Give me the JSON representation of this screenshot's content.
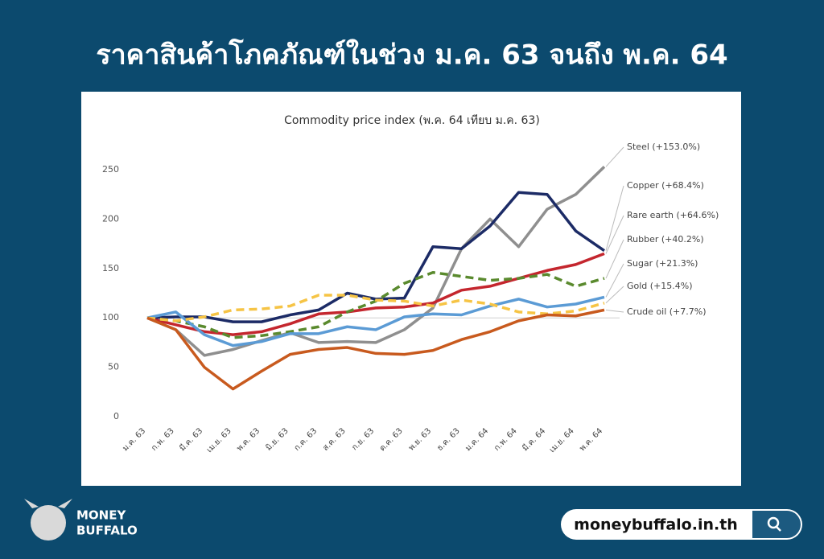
{
  "header": {
    "title": "ราคาสินค้าโภคภัณฑ์ในช่วง ม.ค. 63 จนถึง พ.ค. 64"
  },
  "chart_data": {
    "type": "line",
    "title": "Commodity price index (พ.ค. 64 เทียบ ม.ค. 63)",
    "categories": [
      "ม.ค. 63",
      "ก.พ. 63",
      "มี.ค. 63",
      "เม.ย. 63",
      "พ.ค. 63",
      "มิ.ย. 63",
      "ก.ค. 63",
      "ส.ค. 63",
      "ก.ย. 63",
      "ต.ค. 63",
      "พ.ย. 63",
      "ธ.ค. 63",
      "ม.ค. 64",
      "ก.พ. 64",
      "มี.ค. 64",
      "เม.ย. 64",
      "พ.ค. 64"
    ],
    "ylim": [
      0,
      250
    ],
    "yticks": [
      0,
      50,
      100,
      150,
      200,
      250
    ],
    "baseline": 100,
    "series": [
      {
        "name": "Steel (+153.0%)",
        "color": "#8f8f8f",
        "dash": false,
        "values": [
          100,
          88,
          62,
          68,
          77,
          85,
          75,
          76,
          75,
          88,
          110,
          170,
          200,
          172,
          210,
          225,
          253
        ]
      },
      {
        "name": "Copper (+68.4%)",
        "color": "#1c2b66",
        "dash": false,
        "values": [
          100,
          101,
          101,
          96,
          96,
          103,
          108,
          125,
          119,
          120,
          172,
          170,
          193,
          227,
          225,
          188,
          168
        ]
      },
      {
        "name": "Rare earth (+64.6%)",
        "color": "#c4262e",
        "dash": false,
        "values": [
          100,
          93,
          86,
          83,
          86,
          94,
          104,
          106,
          110,
          111,
          115,
          128,
          132,
          140,
          148,
          154,
          165
        ]
      },
      {
        "name": "Rubber (+40.2%)",
        "color": "#5a8a2e",
        "dash": true,
        "values": [
          100,
          97,
          91,
          80,
          82,
          86,
          91,
          106,
          117,
          135,
          146,
          142,
          138,
          140,
          144,
          132,
          140
        ]
      },
      {
        "name": "Sugar (+21.3%)",
        "color": "#5b9bd5",
        "dash": false,
        "values": [
          100,
          106,
          83,
          72,
          76,
          84,
          84,
          91,
          88,
          101,
          104,
          103,
          112,
          119,
          111,
          114,
          121
        ]
      },
      {
        "name": "Gold (+15.4%)",
        "color": "#f6c445",
        "dash": true,
        "values": [
          100,
          97,
          101,
          108,
          109,
          112,
          123,
          123,
          118,
          117,
          112,
          118,
          114,
          106,
          104,
          107,
          115
        ]
      },
      {
        "name": "Crude oil (+7.7%)",
        "color": "#c85a1e",
        "dash": false,
        "values": [
          100,
          88,
          50,
          28,
          46,
          63,
          68,
          70,
          64,
          63,
          67,
          78,
          86,
          97,
          103,
          102,
          108
        ]
      }
    ]
  },
  "logo": {
    "line1": "MONEY",
    "line2": "BUFFALO"
  },
  "search": {
    "url": "moneybuffalo.in.th"
  }
}
